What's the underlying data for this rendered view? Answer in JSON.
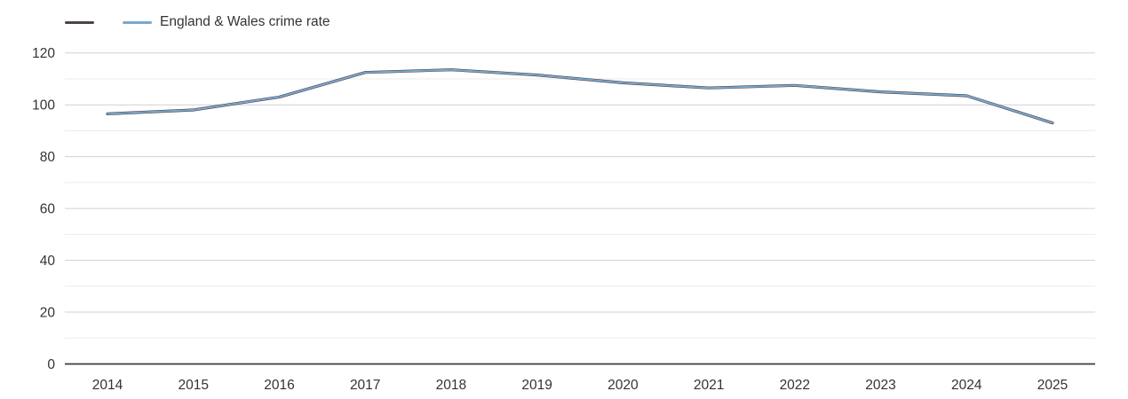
{
  "legend": [
    {
      "label": "",
      "color": "#4d4349"
    },
    {
      "label": "England & Wales crime rate",
      "color": "#7aa8ce"
    }
  ],
  "colors": {
    "major_grid": "#d0d0d0",
    "minor_grid": "#ebebeb",
    "axis_line": "#3c3c3c",
    "tick_text": "#333333"
  },
  "chart_data": {
    "type": "line",
    "title": "",
    "x": [
      2014,
      2015,
      2016,
      2017,
      2018,
      2019,
      2020,
      2021,
      2022,
      2023,
      2024,
      2025
    ],
    "series": [
      {
        "name": "",
        "color": "#4d4349",
        "values": [
          96.5,
          98,
          103,
          112.5,
          113.5,
          111.5,
          108.5,
          106.5,
          107.5,
          105,
          103.5,
          93
        ]
      },
      {
        "name": "England & Wales crime rate",
        "color": "#7aa8ce",
        "values": [
          96.5,
          98,
          103,
          112.5,
          113.5,
          111.5,
          108.5,
          106.5,
          107.5,
          105,
          103.5,
          93
        ]
      }
    ],
    "xlabel": "",
    "ylabel": "",
    "ylim": [
      0,
      120
    ],
    "y_tick_labels": [
      0,
      20,
      40,
      60,
      80,
      100,
      120
    ],
    "y_minor_interval": 10,
    "grid": true,
    "legend_position": "top-left"
  }
}
